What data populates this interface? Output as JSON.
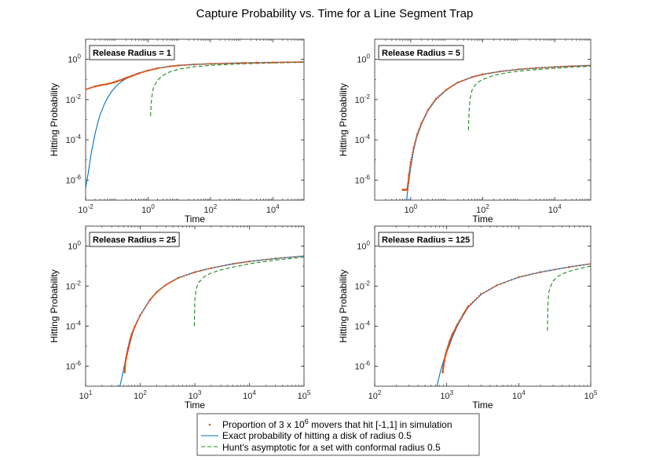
{
  "figure_title": "Capture Probability vs. Time for a Line Segment Trap",
  "legend": {
    "dots_pre": "Proportion of 3 x 10",
    "dots_exp": "6",
    "dots_post": " movers that hit [-1,1] in simulation",
    "exact": "Exact probability of hitting a disk of radius 0.5",
    "hunt": "Hunt's asymptotic for a set with conformal radius 0.5"
  },
  "colors": {
    "dots": "#d95319",
    "exact": "#0072bd",
    "hunt": "#1a8a1a"
  },
  "chart_data": [
    {
      "type": "line",
      "title": "Release Radius = 1",
      "xlabel": "Time",
      "ylabel": "Hitting Probability",
      "xscale": "log",
      "yscale": "log",
      "xlim": [
        0.01,
        100000
      ],
      "ylim": [
        1e-07,
        10
      ],
      "xticks": [
        {
          "b": "10",
          "e": "-2"
        },
        {
          "b": "10",
          "e": "0"
        },
        {
          "b": "10",
          "e": "2"
        },
        {
          "b": "10",
          "e": "4"
        }
      ],
      "xtick_values": [
        0.01,
        1,
        100,
        10000
      ],
      "yticks": [
        {
          "b": "10",
          "e": "0"
        },
        {
          "b": "10",
          "e": "-2"
        },
        {
          "b": "10",
          "e": "-4"
        },
        {
          "b": "10",
          "e": "-6"
        }
      ],
      "ytick_values": [
        1,
        0.01,
        0.0001,
        1e-06
      ],
      "series": [
        {
          "name": "simulation",
          "x": [
            0.01,
            0.02,
            0.03,
            0.05,
            0.08,
            0.1,
            0.15,
            0.2,
            0.3,
            0.5,
            1,
            2,
            5,
            10,
            30,
            100,
            300,
            1000,
            3000,
            10000,
            30000,
            100000
          ],
          "y": [
            0.032,
            0.045,
            0.052,
            0.06,
            0.072,
            0.08,
            0.1,
            0.12,
            0.15,
            0.2,
            0.28,
            0.36,
            0.45,
            0.5,
            0.56,
            0.6,
            0.63,
            0.66,
            0.68,
            0.7,
            0.72,
            0.74
          ]
        },
        {
          "name": "exact",
          "x": [
            0.01,
            0.012,
            0.015,
            0.02,
            0.025,
            0.03,
            0.04,
            0.05,
            0.07,
            0.1,
            0.15,
            0.2,
            0.3,
            0.5,
            1,
            2,
            5,
            10,
            30,
            100,
            300,
            1000,
            3000,
            10000,
            30000,
            100000
          ],
          "y": [
            4e-07,
            2e-06,
            2e-05,
            0.0002,
            0.0008,
            0.002,
            0.006,
            0.012,
            0.027,
            0.05,
            0.085,
            0.11,
            0.15,
            0.21,
            0.28,
            0.36,
            0.45,
            0.5,
            0.56,
            0.6,
            0.63,
            0.66,
            0.68,
            0.7,
            0.72,
            0.74
          ]
        },
        {
          "name": "hunt",
          "x": [
            1.2,
            1.3,
            1.5,
            2,
            3,
            5,
            10,
            30,
            100,
            300,
            1000,
            3000,
            10000,
            30000,
            100000
          ],
          "y": [
            0.0015,
            0.012,
            0.04,
            0.09,
            0.16,
            0.24,
            0.33,
            0.43,
            0.5,
            0.55,
            0.6,
            0.63,
            0.66,
            0.69,
            0.71
          ]
        }
      ]
    },
    {
      "type": "line",
      "title": "Release Radius = 5",
      "xlabel": "Time",
      "ylabel": "Hitting Probability",
      "xscale": "log",
      "yscale": "log",
      "xlim": [
        0.1,
        100000
      ],
      "ylim": [
        1e-07,
        10
      ],
      "xticks": [
        {
          "b": "10",
          "e": "0"
        },
        {
          "b": "10",
          "e": "2"
        },
        {
          "b": "10",
          "e": "4"
        }
      ],
      "xtick_values": [
        1,
        100,
        10000
      ],
      "yticks": [
        {
          "b": "10",
          "e": "0"
        },
        {
          "b": "10",
          "e": "-2"
        },
        {
          "b": "10",
          "e": "-4"
        },
        {
          "b": "10",
          "e": "-6"
        }
      ],
      "ytick_values": [
        1,
        0.01,
        0.0001,
        1e-06
      ],
      "series": [
        {
          "name": "simulation",
          "x": [
            0.6,
            0.65,
            0.7,
            0.75,
            0.8,
            0.85,
            0.9,
            1,
            1.2,
            1.5,
            2,
            3,
            5,
            10,
            20,
            50,
            100,
            300,
            1000,
            3000,
            10000,
            30000,
            100000
          ],
          "y": [
            3.3e-07,
            3.3e-07,
            3.3e-07,
            3.3e-07,
            3.3e-07,
            7e-07,
            2e-06,
            8e-06,
            4e-05,
            0.00018,
            0.0007,
            0.003,
            0.011,
            0.032,
            0.07,
            0.13,
            0.18,
            0.25,
            0.32,
            0.37,
            0.42,
            0.46,
            0.5
          ]
        },
        {
          "name": "exact",
          "x": [
            0.75,
            0.8,
            0.9,
            1,
            1.2,
            1.5,
            2,
            3,
            5,
            10,
            20,
            50,
            100,
            300,
            1000,
            3000,
            10000,
            30000,
            100000
          ],
          "y": [
            5e-08,
            2e-07,
            1e-06,
            4e-06,
            3e-05,
            0.00015,
            0.0006,
            0.0028,
            0.01,
            0.031,
            0.07,
            0.13,
            0.18,
            0.25,
            0.32,
            0.37,
            0.42,
            0.46,
            0.5
          ]
        },
        {
          "name": "hunt",
          "x": [
            40,
            42,
            45,
            50,
            60,
            80,
            100,
            200,
            500,
            1000,
            3000,
            10000,
            30000,
            100000
          ],
          "y": [
            0.0003,
            0.003,
            0.012,
            0.028,
            0.05,
            0.08,
            0.1,
            0.16,
            0.22,
            0.26,
            0.31,
            0.36,
            0.41,
            0.45
          ]
        }
      ]
    },
    {
      "type": "line",
      "title": "Release Radius = 25",
      "xlabel": "Time",
      "ylabel": "Hitting Probability",
      "xscale": "log",
      "yscale": "log",
      "xlim": [
        10,
        100000
      ],
      "ylim": [
        1e-07,
        10
      ],
      "xticks": [
        {
          "b": "10",
          "e": "1"
        },
        {
          "b": "10",
          "e": "2"
        },
        {
          "b": "10",
          "e": "3"
        },
        {
          "b": "10",
          "e": "4"
        },
        {
          "b": "10",
          "e": "5"
        }
      ],
      "xtick_values": [
        10,
        100,
        1000,
        10000,
        100000
      ],
      "yticks": [
        {
          "b": "10",
          "e": "0"
        },
        {
          "b": "10",
          "e": "-2"
        },
        {
          "b": "10",
          "e": "-4"
        },
        {
          "b": "10",
          "e": "-6"
        }
      ],
      "ytick_values": [
        1,
        0.01,
        0.0001,
        1e-06
      ],
      "series": [
        {
          "name": "simulation",
          "x": [
            52,
            53,
            55,
            57,
            60,
            65,
            70,
            80,
            100,
            150,
            200,
            300,
            500,
            1000,
            2000,
            5000,
            10000,
            30000,
            100000
          ],
          "y": [
            5e-07,
            1.2e-06,
            2.5e-06,
            4e-06,
            8e-06,
            2e-05,
            4e-05,
            0.0001,
            0.00035,
            0.002,
            0.005,
            0.012,
            0.026,
            0.05,
            0.08,
            0.13,
            0.17,
            0.24,
            0.32
          ]
        },
        {
          "name": "exact",
          "x": [
            40,
            45,
            50,
            55,
            60,
            70,
            80,
            100,
            150,
            200,
            300,
            500,
            1000,
            2000,
            5000,
            10000,
            30000,
            100000
          ],
          "y": [
            5e-08,
            2e-07,
            8e-07,
            2.5e-06,
            6e-06,
            3e-05,
            0.0001,
            0.00035,
            0.002,
            0.005,
            0.012,
            0.026,
            0.05,
            0.08,
            0.13,
            0.17,
            0.24,
            0.32
          ]
        },
        {
          "name": "hunt",
          "x": [
            980,
            1000,
            1050,
            1100,
            1200,
            1500,
            2000,
            3000,
            5000,
            10000,
            30000,
            100000
          ],
          "y": [
            0.0001,
            0.002,
            0.006,
            0.01,
            0.016,
            0.03,
            0.045,
            0.065,
            0.09,
            0.13,
            0.2,
            0.28
          ]
        }
      ]
    },
    {
      "type": "line",
      "title": "Release Radius = 125",
      "xlabel": "Time",
      "ylabel": "Hitting Probability",
      "xscale": "log",
      "yscale": "log",
      "xlim": [
        100,
        100000
      ],
      "ylim": [
        1e-07,
        10
      ],
      "xticks": [
        {
          "b": "10",
          "e": "2"
        },
        {
          "b": "10",
          "e": "3"
        },
        {
          "b": "10",
          "e": "4"
        },
        {
          "b": "10",
          "e": "5"
        }
      ],
      "xtick_values": [
        100,
        1000,
        10000,
        100000
      ],
      "yticks": [
        {
          "b": "10",
          "e": "0"
        },
        {
          "b": "10",
          "e": "-2"
        },
        {
          "b": "10",
          "e": "-4"
        },
        {
          "b": "10",
          "e": "-6"
        }
      ],
      "ytick_values": [
        1,
        0.01,
        0.0001,
        1e-06
      ],
      "series": [
        {
          "name": "simulation",
          "x": [
            880,
            900,
            930,
            960,
            1000,
            1050,
            1100,
            1200,
            1400,
            1700,
            2000,
            3000,
            5000,
            10000,
            20000,
            50000,
            100000
          ],
          "y": [
            5e-07,
            1e-06,
            2e-06,
            3.5e-06,
            6e-06,
            1e-05,
            1.8e-05,
            4e-05,
            0.00012,
            0.0004,
            0.001,
            0.004,
            0.011,
            0.028,
            0.05,
            0.09,
            0.13
          ]
        },
        {
          "name": "exact",
          "x": [
            700,
            750,
            800,
            850,
            900,
            1000,
            1100,
            1200,
            1400,
            1700,
            2000,
            3000,
            5000,
            10000,
            20000,
            50000,
            100000
          ],
          "y": [
            5e-08,
            1.5e-07,
            4e-07,
            9e-07,
            1.8e-06,
            5e-06,
            1.2e-05,
            2.8e-05,
            0.0001,
            0.00035,
            0.0009,
            0.0038,
            0.011,
            0.028,
            0.05,
            0.09,
            0.13
          ]
        },
        {
          "name": "hunt",
          "x": [
            25000,
            25500,
            26000,
            27000,
            30000,
            35000,
            40000,
            50000,
            70000,
            100000
          ],
          "y": [
            6e-05,
            0.0015,
            0.004,
            0.008,
            0.018,
            0.03,
            0.04,
            0.055,
            0.075,
            0.1
          ]
        }
      ]
    }
  ]
}
